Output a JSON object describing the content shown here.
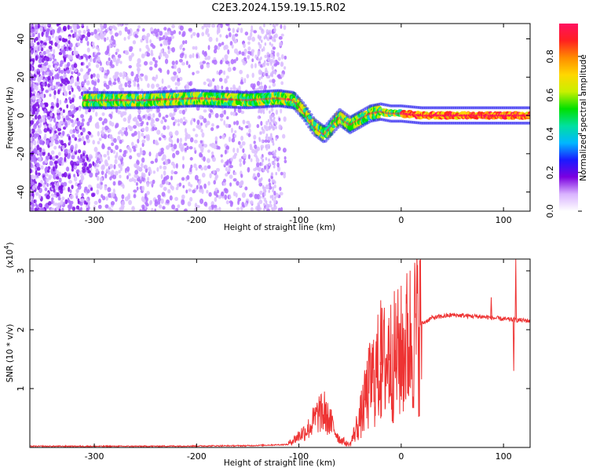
{
  "title": "C2E3.2024.159.19.15.R02",
  "chart_data": [
    {
      "type": "heatmap",
      "xlabel": "Height of straight line (km)",
      "ylabel": "Frequency (Hz)",
      "xlim": [
        -363,
        126
      ],
      "ylim": [
        -50,
        48
      ],
      "xticks": [
        -300,
        -200,
        -100,
        0,
        100
      ],
      "xtick_labels": [
        "-300",
        "-200",
        "-100",
        "0",
        "100"
      ],
      "yticks": [
        40,
        20,
        0,
        -20,
        -40
      ],
      "ytick_labels": [
        "40",
        "20",
        "0",
        "-20",
        "-40"
      ],
      "colorbar": {
        "label": "Normalized spectral amplitude",
        "range": [
          0,
          0.97
        ],
        "ticks": [
          0.0,
          0.2,
          0.4,
          0.6,
          0.8
        ],
        "tick_labels": [
          "0.0",
          "0.2",
          "0.4",
          "0.6",
          "0.8"
        ],
        "colormap": "rainbow",
        "stops": [
          "#ffffff",
          "#d9b3ff",
          "#7b00e0",
          "#1a1aff",
          "#00b7ff",
          "#00e0a0",
          "#00e000",
          "#c8f000",
          "#ffd700",
          "#ff8c00",
          "#ff2020",
          "#ff1060"
        ]
      },
      "carrier_track": [
        {
          "x": -310,
          "y": 8
        },
        {
          "x": -250,
          "y": 8
        },
        {
          "x": -200,
          "y": 9
        },
        {
          "x": -150,
          "y": 8
        },
        {
          "x": -120,
          "y": 9
        },
        {
          "x": -105,
          "y": 8
        },
        {
          "x": -95,
          "y": 2
        },
        {
          "x": -85,
          "y": -6
        },
        {
          "x": -75,
          "y": -10
        },
        {
          "x": -60,
          "y": -1
        },
        {
          "x": -50,
          "y": -5
        },
        {
          "x": -40,
          "y": -2
        },
        {
          "x": -30,
          "y": 1
        },
        {
          "x": -20,
          "y": 2
        },
        {
          "x": -10,
          "y": 1
        },
        {
          "x": 0,
          "y": 1
        },
        {
          "x": 20,
          "y": 0
        },
        {
          "x": 60,
          "y": 0
        },
        {
          "x": 100,
          "y": 0
        },
        {
          "x": 126,
          "y": 0
        }
      ]
    },
    {
      "type": "line",
      "xlabel": "Height of straight line (km)",
      "ylabel": "SNR (10 * v/v)",
      "multiplier_label": "(x10",
      "multiplier_exp": "4",
      "multiplier_close": ")",
      "xlim": [
        -363,
        126
      ],
      "ylim": [
        0,
        3.2
      ],
      "xticks": [
        -300,
        -200,
        -100,
        0,
        100
      ],
      "xtick_labels": [
        "-300",
        "-200",
        "-100",
        "0",
        "100"
      ],
      "yticks": [
        1,
        2,
        3
      ],
      "ytick_labels": [
        "1",
        "2",
        "3"
      ],
      "series": [
        {
          "color": "#ee3333",
          "envelope": [
            {
              "x": -363,
              "y": 0.02
            },
            {
              "x": -250,
              "y": 0.02
            },
            {
              "x": -150,
              "y": 0.03
            },
            {
              "x": -110,
              "y": 0.05
            },
            {
              "x": -100,
              "y": 0.15
            },
            {
              "x": -90,
              "y": 0.25
            },
            {
              "x": -80,
              "y": 0.45
            },
            {
              "x": -70,
              "y": 0.35
            },
            {
              "x": -60,
              "y": 0.1
            },
            {
              "x": -50,
              "y": 0.05
            },
            {
              "x": -40,
              "y": 0.5
            },
            {
              "x": -30,
              "y": 1.1
            },
            {
              "x": -20,
              "y": 1.4
            },
            {
              "x": -10,
              "y": 1.5
            },
            {
              "x": 0,
              "y": 1.6
            },
            {
              "x": 10,
              "y": 1.9
            },
            {
              "x": 20,
              "y": 2.1
            },
            {
              "x": 30,
              "y": 2.2
            },
            {
              "x": 50,
              "y": 2.25
            },
            {
              "x": 80,
              "y": 2.22
            },
            {
              "x": 100,
              "y": 2.18
            },
            {
              "x": 126,
              "y": 2.15
            }
          ],
          "spikes": [
            {
              "x": -75,
              "y": 0.95
            },
            {
              "x": -35,
              "y": 1.25
            },
            {
              "x": -20,
              "y": 2.5
            },
            {
              "x": -12,
              "y": 2.2
            },
            {
              "x": 88,
              "y": 2.55
            },
            {
              "x": 110,
              "y": 1.3
            },
            {
              "x": 112,
              "y": 3.2
            }
          ]
        }
      ]
    }
  ]
}
